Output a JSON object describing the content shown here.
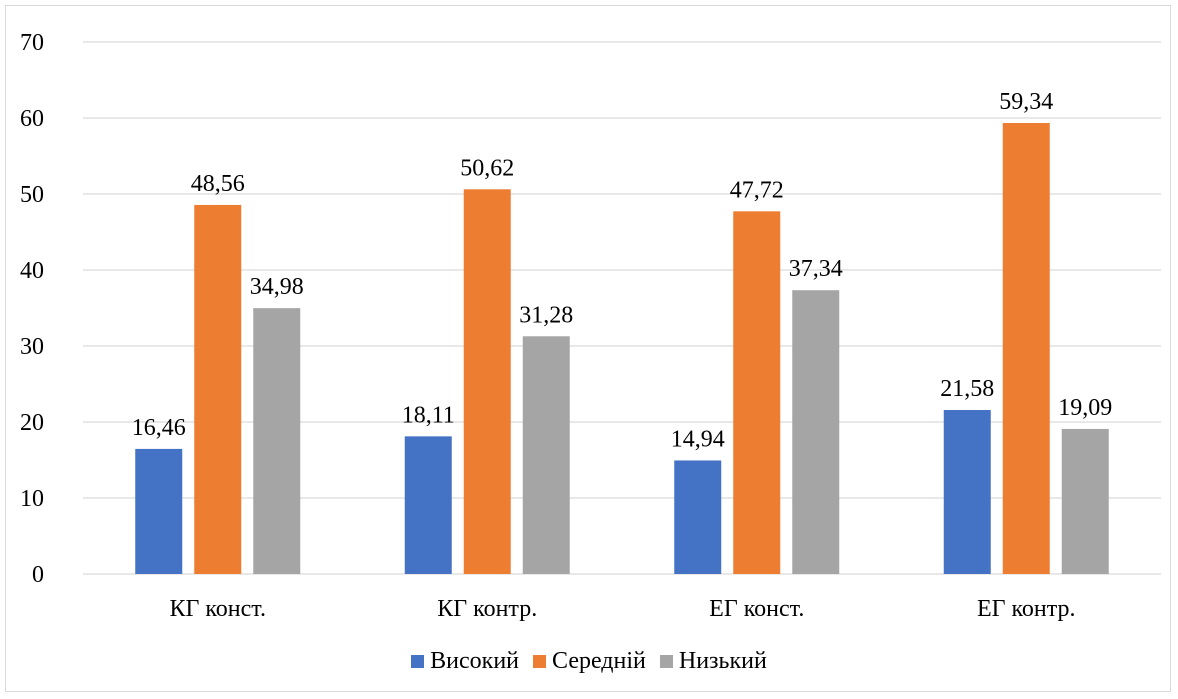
{
  "chart_data": {
    "type": "bar",
    "title": "",
    "xlabel": "",
    "ylabel": "",
    "ylim": [
      0,
      70
    ],
    "yticks": [
      0,
      10,
      20,
      30,
      40,
      50,
      60,
      70
    ],
    "ytick_labels": [
      "0",
      "10",
      "20",
      "30",
      "40",
      "50",
      "60",
      "70"
    ],
    "grid": true,
    "legend_position": "bottom",
    "categories": [
      "КГ конст.",
      "КГ контр.",
      "ЕГ конст.",
      "ЕГ контр."
    ],
    "series": [
      {
        "name": "Високий",
        "color": "#4472C4",
        "values": [
          16.46,
          18.11,
          14.94,
          21.58
        ],
        "labels": [
          "16,46",
          "18,11",
          "14,94",
          "21,58"
        ]
      },
      {
        "name": "Середній",
        "color": "#ED7D31",
        "values": [
          48.56,
          50.62,
          47.72,
          59.34
        ],
        "labels": [
          "48,56",
          "50,62",
          "47,72",
          "59,34"
        ]
      },
      {
        "name": "Низький",
        "color": "#A5A5A5",
        "values": [
          34.98,
          31.28,
          37.34,
          19.09
        ],
        "labels": [
          "34,98",
          "31,28",
          "37,34",
          "19,09"
        ]
      }
    ]
  }
}
